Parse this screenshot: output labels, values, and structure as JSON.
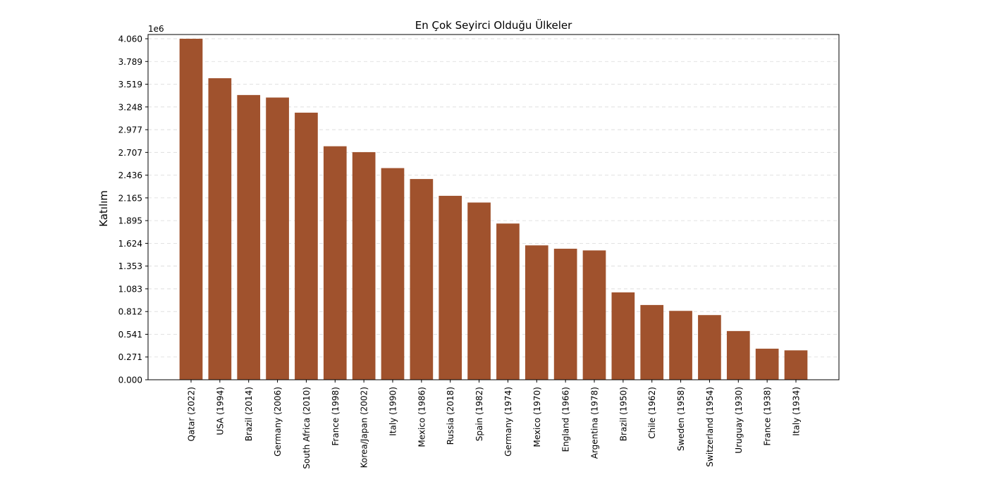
{
  "chart_data": {
    "type": "bar",
    "title": "En Çok Seyirci Olduğu Ülkeler",
    "xlabel": "",
    "ylabel": "Katılım",
    "y_offset_label": "1e6",
    "y_scale": 1000000,
    "ylim": [
      0,
      4060000
    ],
    "y_tick_labels": [
      "0.000",
      "0.271",
      "0.541",
      "0.812",
      "1.083",
      "1.353",
      "1.624",
      "1.895",
      "2.165",
      "2.436",
      "2.707",
      "2.977",
      "3.248",
      "3.519",
      "3.789",
      "4.060"
    ],
    "grid": true,
    "bar_color": "#a0522d",
    "categories": [
      "Qatar (2022)",
      "USA (1994)",
      "Brazil (2014)",
      "Germany (2006)",
      "South Africa (2010)",
      "France (1998)",
      "Korea/Japan (2002)",
      "Italy (1990)",
      "Mexico (1986)",
      "Russia (2018)",
      "Spain (1982)",
      "Germany (1974)",
      "Mexico (1970)",
      "England (1966)",
      "Argentina (1978)",
      "Brazil (1950)",
      "Chile (1962)",
      "Sweden (1958)",
      "Switzerland (1954)",
      "Uruguay (1930)",
      "France (1938)",
      "Italy (1934)"
    ],
    "values": [
      4060000,
      3590000,
      3390000,
      3360000,
      3180000,
      2780000,
      2710000,
      2520000,
      2390000,
      2190000,
      2110000,
      1860000,
      1600000,
      1560000,
      1540000,
      1040000,
      890000,
      820000,
      770000,
      580000,
      370000,
      350000
    ]
  }
}
